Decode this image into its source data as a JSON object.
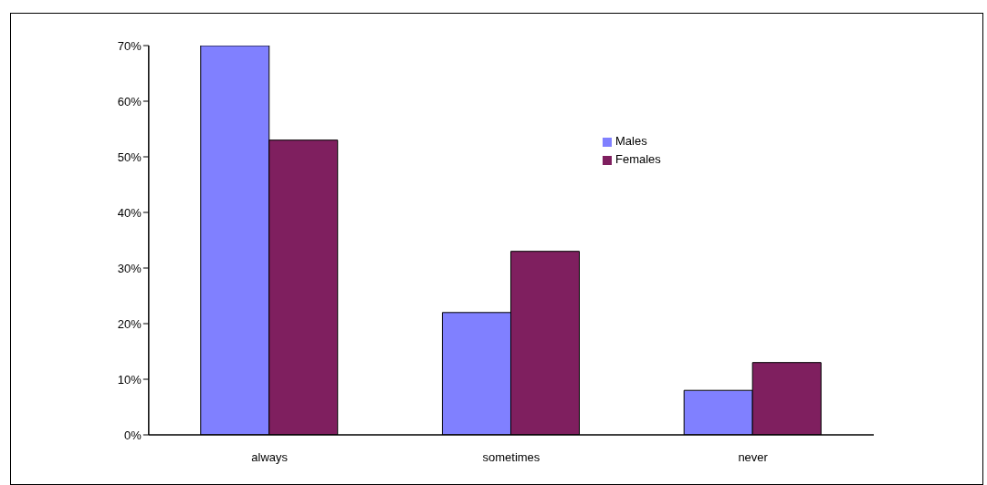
{
  "chart_data": {
    "type": "bar",
    "categories": [
      "always",
      "sometimes",
      "never"
    ],
    "series": [
      {
        "name": "Males",
        "color": "#8080ff",
        "values": [
          70,
          22,
          8
        ]
      },
      {
        "name": "Females",
        "color": "#7f1f5f",
        "values": [
          53,
          33,
          13
        ]
      }
    ],
    "ylim": [
      0,
      70
    ],
    "yticks": [
      {
        "value": 0,
        "label": "0%"
      },
      {
        "value": 10,
        "label": "10%"
      },
      {
        "value": 20,
        "label": "20%"
      },
      {
        "value": 30,
        "label": "30%"
      },
      {
        "value": 40,
        "label": "40%"
      },
      {
        "value": 50,
        "label": "50%"
      },
      {
        "value": 60,
        "label": "60%"
      },
      {
        "value": 70,
        "label": "70%"
      }
    ],
    "grid": false,
    "legend": "top right"
  }
}
